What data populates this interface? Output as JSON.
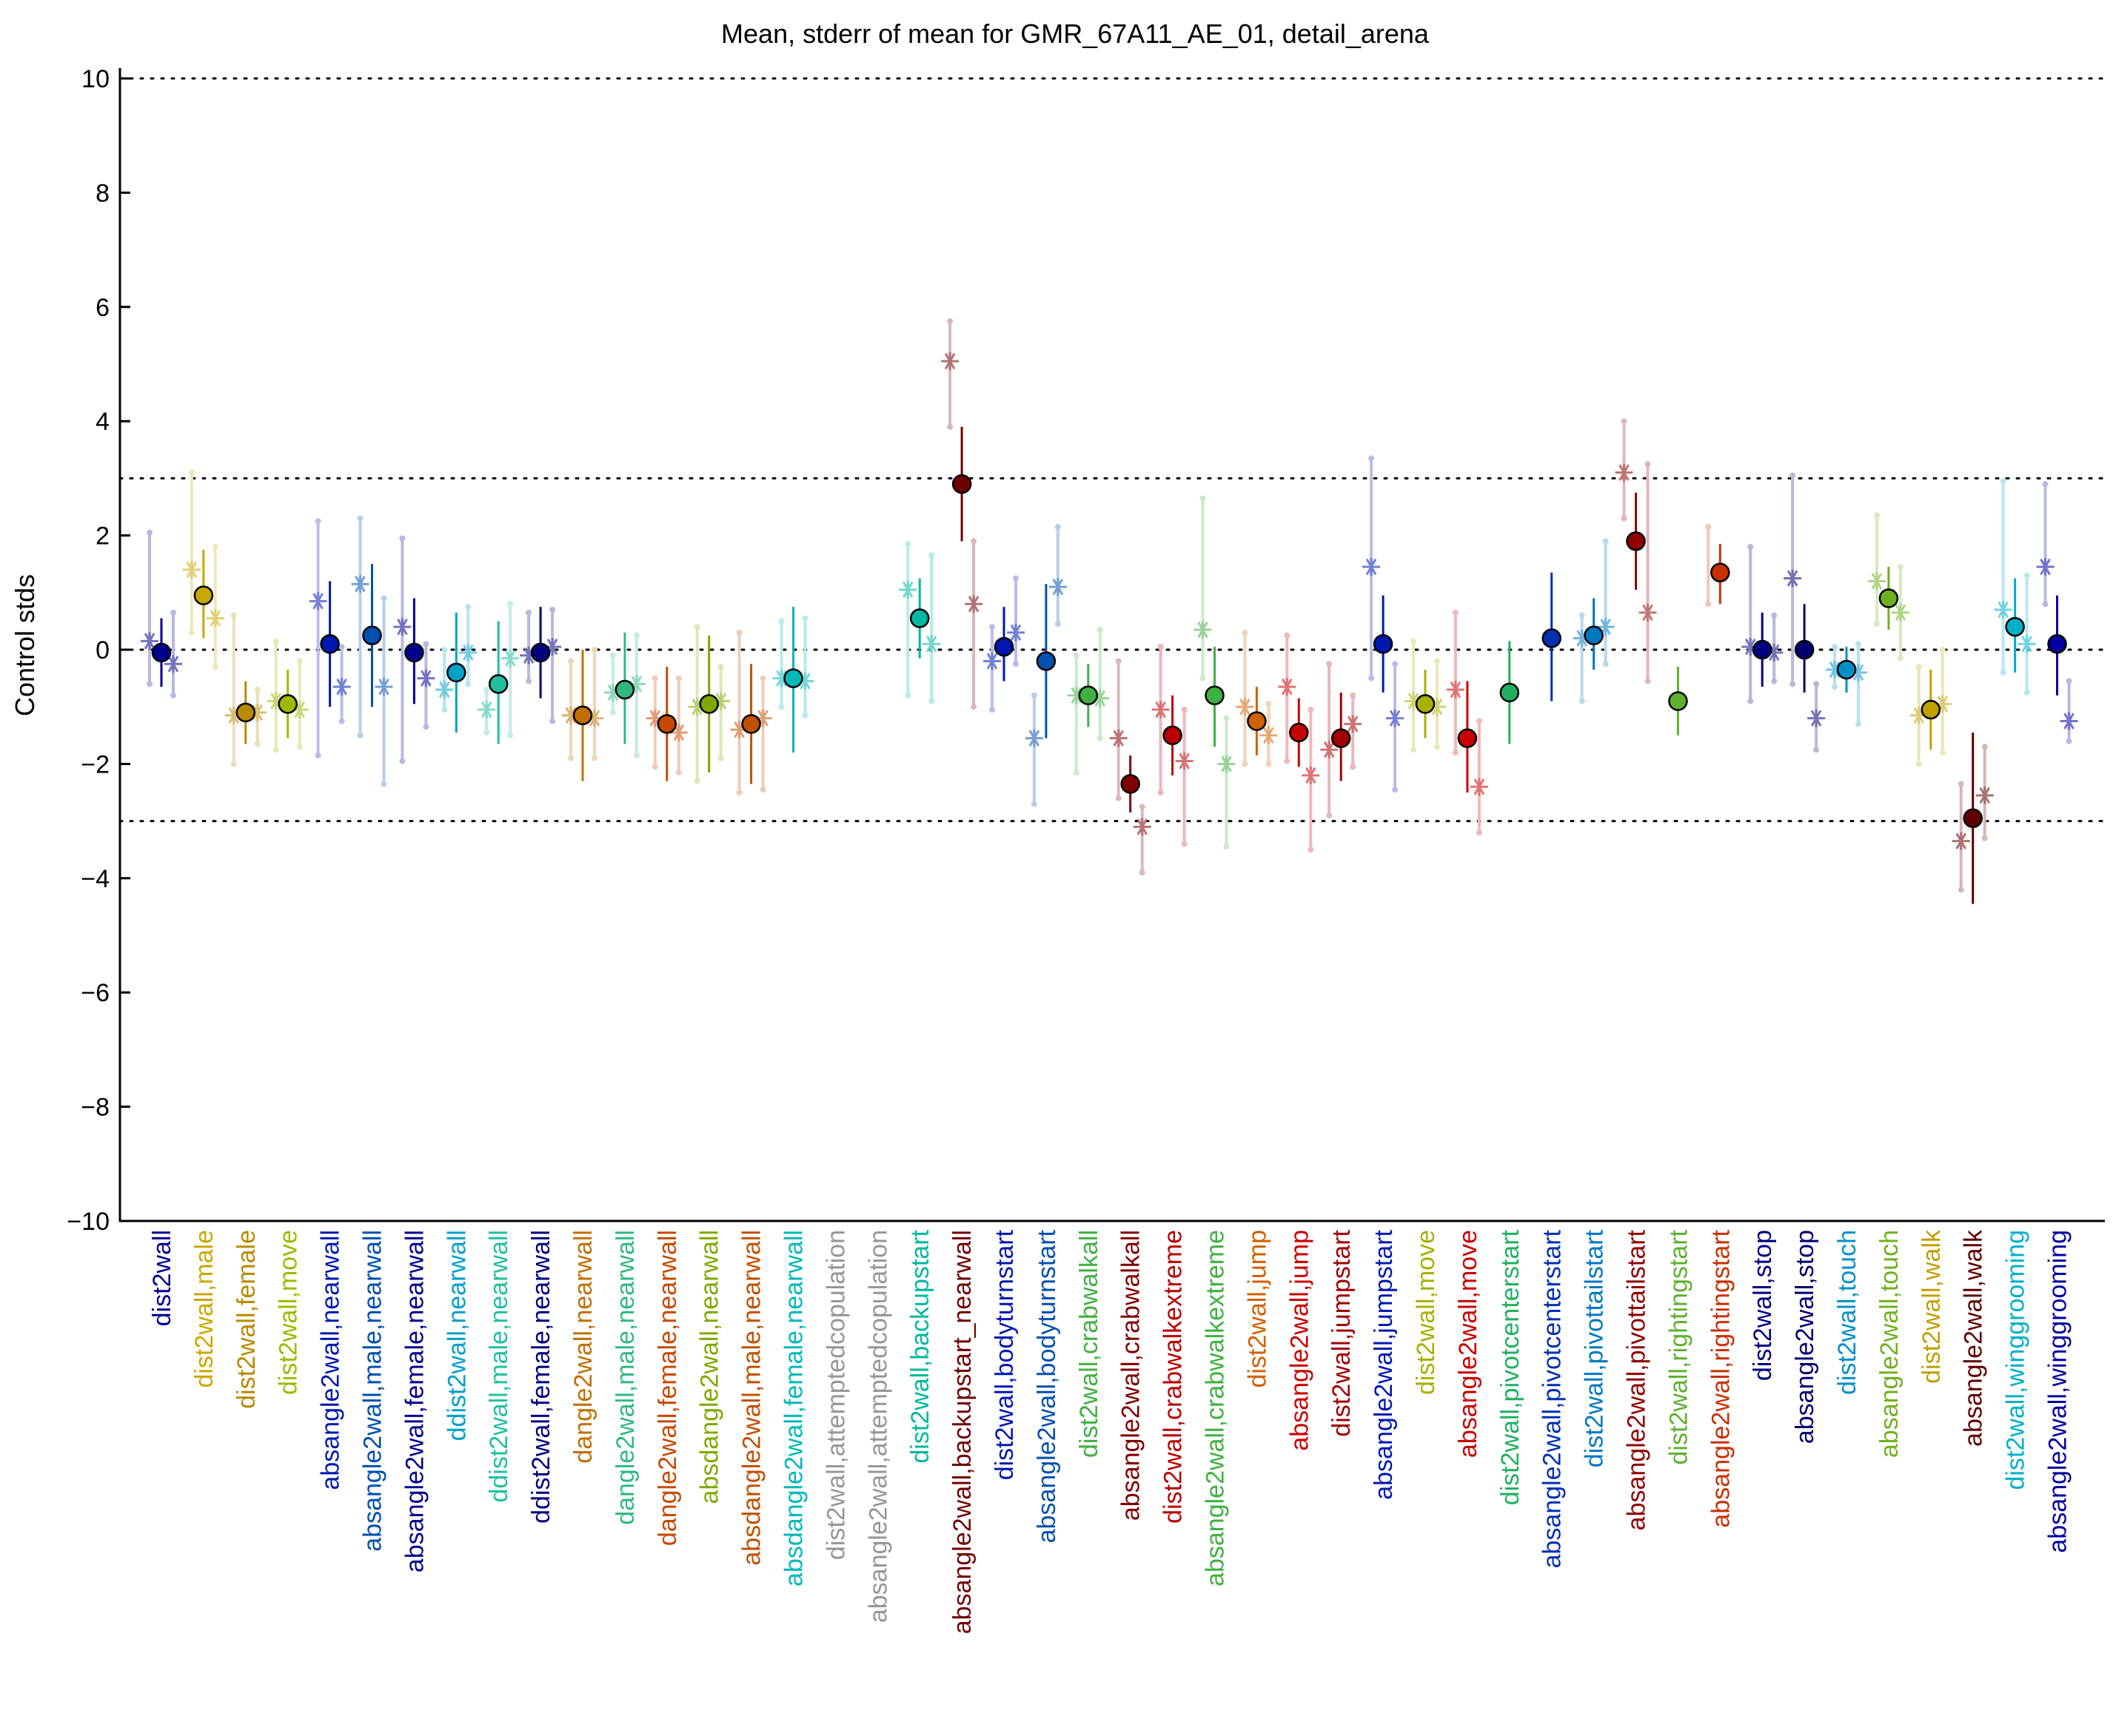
{
  "chart_data": {
    "type": "scatter",
    "title": "Mean, stderr of mean for GMR_67A11_AE_01, detail_arena",
    "xlabel": "",
    "ylabel": "Control stds",
    "ylim": [
      -10,
      10
    ],
    "yticks": [
      10,
      8,
      6,
      4,
      2,
      0,
      -2,
      -4,
      -6,
      -8,
      -10
    ],
    "ytick_labels": [
      "10",
      "8",
      "6",
      "4",
      "2",
      "0",
      "−2",
      "−4",
      "−6",
      "−8",
      "−10"
    ],
    "reference_lines": [
      10,
      3,
      0,
      -3,
      -10
    ],
    "reference_line_style": "dotted",
    "grid": false,
    "legend": "none",
    "categories": [
      {
        "label": "dist2wall",
        "color": "#00008f",
        "mean": -0.05,
        "err_lo": -0.65,
        "err_hi": 0.55,
        "left_star": 0.15,
        "left_lo": -0.6,
        "left_hi": 2.05,
        "right_star": -0.25,
        "right_lo": -0.8,
        "right_hi": 0.65
      },
      {
        "label": "dist2wall,male",
        "color": "#c8a800",
        "mean": 0.95,
        "err_lo": 0.2,
        "err_hi": 1.75,
        "left_star": 1.4,
        "left_lo": 0.3,
        "left_hi": 3.1,
        "right_star": 0.55,
        "right_lo": -0.3,
        "right_hi": 1.8
      },
      {
        "label": "dist2wall,female",
        "color": "#b88a00",
        "mean": -1.1,
        "err_lo": -1.65,
        "err_hi": -0.55,
        "left_star": -1.15,
        "left_lo": -2.0,
        "left_hi": 0.6,
        "right_star": -1.1,
        "right_lo": -1.65,
        "right_hi": -0.7
      },
      {
        "label": "dist2wall,move",
        "color": "#a0b800",
        "mean": -0.95,
        "err_lo": -1.55,
        "err_hi": -0.35,
        "left_star": -0.9,
        "left_lo": -1.75,
        "left_hi": 0.15,
        "right_star": -1.05,
        "right_lo": -1.7,
        "right_hi": -0.2
      },
      {
        "label": "absangle2wall,nearwall",
        "color": "#0018b0",
        "mean": 0.1,
        "err_lo": -1.0,
        "err_hi": 1.2,
        "left_star": 0.85,
        "left_lo": -1.85,
        "left_hi": 2.25,
        "right_star": -0.65,
        "right_lo": -1.25,
        "right_hi": 0.05
      },
      {
        "label": "absangle2wall,male,nearwall",
        "color": "#0050b0",
        "mean": 0.25,
        "err_lo": -1.0,
        "err_hi": 1.5,
        "left_star": 1.15,
        "left_lo": -1.5,
        "left_hi": 2.3,
        "right_star": -0.65,
        "right_lo": -2.35,
        "right_hi": 0.9
      },
      {
        "label": "absangle2wall,female,nearwall",
        "color": "#00008f",
        "mean": -0.05,
        "err_lo": -0.95,
        "err_hi": 0.9,
        "left_star": 0.4,
        "left_lo": -1.95,
        "left_hi": 1.95,
        "right_star": -0.5,
        "right_lo": -1.35,
        "right_hi": 0.1
      },
      {
        "label": "ddist2wall,nearwall",
        "color": "#00a0c8",
        "mean": -0.4,
        "err_lo": -1.45,
        "err_hi": 0.65,
        "left_star": -0.7,
        "left_lo": -1.05,
        "left_hi": 0.0,
        "right_star": -0.05,
        "right_lo": -0.6,
        "right_hi": 0.75
      },
      {
        "label": "ddist2wall,male,nearwall",
        "color": "#20c0a0",
        "mean": -0.6,
        "err_lo": -1.65,
        "err_hi": 0.5,
        "left_star": -1.05,
        "left_lo": -1.45,
        "left_hi": -0.7,
        "right_star": -0.15,
        "right_lo": -1.5,
        "right_hi": 0.8
      },
      {
        "label": "ddist2wall,female,nearwall",
        "color": "#000080",
        "mean": -0.05,
        "err_lo": -0.85,
        "err_hi": 0.75,
        "left_star": -0.1,
        "left_lo": -0.55,
        "left_hi": 0.65,
        "right_star": 0.05,
        "right_lo": -1.25,
        "right_hi": 0.7
      },
      {
        "label": "dangle2wall,nearwall",
        "color": "#c07000",
        "mean": -1.15,
        "err_lo": -2.3,
        "err_hi": 0.0,
        "left_star": -1.15,
        "left_lo": -1.9,
        "left_hi": -0.2,
        "right_star": -1.2,
        "right_lo": -1.9,
        "right_hi": 0.0
      },
      {
        "label": "dangle2wall,male,nearwall",
        "color": "#30b880",
        "mean": -0.7,
        "err_lo": -1.65,
        "err_hi": 0.3,
        "left_star": -0.75,
        "left_lo": -1.1,
        "left_hi": -0.1,
        "right_star": -0.6,
        "right_lo": -1.85,
        "right_hi": 0.25
      },
      {
        "label": "dangle2wall,female,nearwall",
        "color": "#c84800",
        "mean": -1.3,
        "err_lo": -2.3,
        "err_hi": -0.3,
        "left_star": -1.2,
        "left_lo": -2.05,
        "left_hi": -0.5,
        "right_star": -1.45,
        "right_lo": -2.15,
        "right_hi": -0.5
      },
      {
        "label": "absdangle2wall,nearwall",
        "color": "#80a800",
        "mean": -0.95,
        "err_lo": -2.15,
        "err_hi": 0.25,
        "left_star": -1.0,
        "left_lo": -2.3,
        "left_hi": 0.4,
        "right_star": -0.9,
        "right_lo": -1.9,
        "right_hi": -0.3
      },
      {
        "label": "absdangle2wall,male,nearwall",
        "color": "#c05000",
        "mean": -1.3,
        "err_lo": -2.35,
        "err_hi": -0.25,
        "left_star": -1.4,
        "left_lo": -2.5,
        "left_hi": 0.3,
        "right_star": -1.2,
        "right_lo": -2.45,
        "right_hi": -0.5
      },
      {
        "label": "absdangle2wall,female,nearwall",
        "color": "#00b8b8",
        "mean": -0.5,
        "err_lo": -1.8,
        "err_hi": 0.75,
        "left_star": -0.5,
        "left_lo": -1.0,
        "left_hi": 0.5,
        "right_star": -0.55,
        "right_lo": -1.15,
        "right_hi": 0.55
      },
      {
        "label": "dist2wall,attemptedcopulation",
        "color": "#969696",
        "mean": null
      },
      {
        "label": "absangle2wall,attemptedcopulation",
        "color": "#969696",
        "mean": null
      },
      {
        "label": "dist2wall,backupstart",
        "color": "#00b8a0",
        "mean": 0.55,
        "err_lo": -0.15,
        "err_hi": 1.25,
        "left_star": 1.05,
        "left_lo": -0.8,
        "left_hi": 1.85,
        "right_star": 0.1,
        "right_lo": -0.9,
        "right_hi": 1.65
      },
      {
        "label": "absangle2wall,backupstart_nearwall",
        "color": "#700000",
        "mean": 2.9,
        "err_lo": 1.9,
        "err_hi": 3.9,
        "left_star": 5.05,
        "left_lo": 3.9,
        "left_hi": 5.75,
        "right_star": 0.8,
        "right_lo": -1.0,
        "right_hi": 1.9
      },
      {
        "label": "dist2wall,bodyturnstart",
        "color": "#0018b0",
        "mean": 0.05,
        "err_lo": -0.55,
        "err_hi": 0.75,
        "left_star": -0.2,
        "left_lo": -1.05,
        "left_hi": 0.4,
        "right_star": 0.3,
        "right_lo": -0.25,
        "right_hi": 1.25
      },
      {
        "label": "absangle2wall,bodyturnstart",
        "color": "#0050b0",
        "mean": -0.2,
        "err_lo": -1.55,
        "err_hi": 1.15,
        "left_star": -1.55,
        "left_lo": -2.7,
        "left_hi": -0.8,
        "right_star": 1.1,
        "right_lo": 0.45,
        "right_hi": 2.15
      },
      {
        "label": "dist2wall,crabwalkall",
        "color": "#40b040",
        "mean": -0.8,
        "err_lo": -1.35,
        "err_hi": -0.25,
        "left_star": -0.8,
        "left_lo": -2.15,
        "left_hi": -0.1,
        "right_star": -0.85,
        "right_lo": -1.55,
        "right_hi": 0.35
      },
      {
        "label": "absangle2wall,crabwalkall",
        "color": "#800000",
        "mean": -2.35,
        "err_lo": -2.85,
        "err_hi": -1.85,
        "left_star": -1.55,
        "left_lo": -2.6,
        "left_hi": -0.2,
        "right_star": -3.1,
        "right_lo": -3.9,
        "right_hi": -2.75
      },
      {
        "label": "dist2wall,crabwalkextreme",
        "color": "#b80000",
        "mean": -1.5,
        "err_lo": -2.2,
        "err_hi": -0.8,
        "left_star": -1.05,
        "left_lo": -2.5,
        "left_hi": 0.05,
        "right_star": -1.95,
        "right_lo": -3.4,
        "right_hi": -1.05
      },
      {
        "label": "absangle2wall,crabwalkextreme",
        "color": "#40b040",
        "mean": -0.8,
        "err_lo": -1.7,
        "err_hi": 0.05,
        "left_star": 0.35,
        "left_lo": -0.5,
        "left_hi": 2.65,
        "right_star": -2.0,
        "right_lo": -3.45,
        "right_hi": -1.2
      },
      {
        "label": "dist2wall,jump",
        "color": "#d06000",
        "mean": -1.25,
        "err_lo": -1.85,
        "err_hi": -0.65,
        "left_star": -1.0,
        "left_lo": -2.0,
        "left_hi": 0.3,
        "right_star": -1.5,
        "right_lo": -2.0,
        "right_hi": -0.95
      },
      {
        "label": "absangle2wall,jump",
        "color": "#c80000",
        "mean": -1.45,
        "err_lo": -2.05,
        "err_hi": -0.85,
        "left_star": -0.65,
        "left_lo": -1.95,
        "left_hi": 0.25,
        "right_star": -2.2,
        "right_lo": -3.5,
        "right_hi": -1.05
      },
      {
        "label": "dist2wall,jumpstart",
        "color": "#a00000",
        "mean": -1.55,
        "err_lo": -2.3,
        "err_hi": -0.75,
        "left_star": -1.75,
        "left_lo": -2.9,
        "left_hi": -0.25,
        "right_star": -1.3,
        "right_lo": -2.05,
        "right_hi": -0.8
      },
      {
        "label": "absangle2wall,jumpstart",
        "color": "#0018b0",
        "mean": 0.1,
        "err_lo": -0.75,
        "err_hi": 0.95,
        "left_star": 1.45,
        "left_lo": -0.5,
        "left_hi": 3.35,
        "right_star": -1.2,
        "right_lo": -2.45,
        "right_hi": -0.25
      },
      {
        "label": "dist2wall,move",
        "color": "#a8b000",
        "mean": -0.95,
        "err_lo": -1.55,
        "err_hi": -0.35,
        "left_star": -0.9,
        "left_lo": -1.75,
        "left_hi": 0.15,
        "right_star": -1.0,
        "right_lo": -1.7,
        "right_hi": -0.2
      },
      {
        "label": "absangle2wall,move",
        "color": "#c80000",
        "mean": -1.55,
        "err_lo": -2.5,
        "err_hi": -0.55,
        "left_star": -0.7,
        "left_lo": -1.8,
        "left_hi": 0.65,
        "right_star": -2.4,
        "right_lo": -3.2,
        "right_hi": -1.25
      },
      {
        "label": "dist2wall,pivotcenterstart",
        "color": "#20b060",
        "mean": -0.75,
        "err_lo": -1.65,
        "err_hi": 0.15,
        "no_stars": true
      },
      {
        "label": "absangle2wall,pivotcenterstart",
        "color": "#0030b0",
        "mean": 0.2,
        "err_lo": -0.9,
        "err_hi": 1.35,
        "no_stars": true
      },
      {
        "label": "dist2wall,pivottailstart",
        "color": "#0078c0",
        "mean": 0.25,
        "err_lo": -0.35,
        "err_hi": 0.9,
        "left_star": 0.2,
        "left_lo": -0.9,
        "left_hi": 0.6,
        "right_star": 0.4,
        "right_lo": -0.25,
        "right_hi": 1.9
      },
      {
        "label": "absangle2wall,pivottailstart",
        "color": "#900000",
        "mean": 1.9,
        "err_lo": 1.05,
        "err_hi": 2.75,
        "left_star": 3.1,
        "left_lo": 2.3,
        "left_hi": 4.0,
        "right_star": 0.65,
        "right_lo": -0.55,
        "right_hi": 3.25
      },
      {
        "label": "dist2wall,rightingstart",
        "color": "#60b030",
        "mean": -0.9,
        "err_lo": -1.5,
        "err_hi": -0.3,
        "no_stars": true
      },
      {
        "label": "absangle2wall,rightingstart",
        "color": "#c83000",
        "mean": 1.35,
        "err_lo": 0.8,
        "err_hi": 1.85,
        "left_star": null,
        "left_lo": 0.8,
        "left_hi": 2.15,
        "right_star": null
      },
      {
        "label": "dist2wall,stop",
        "color": "#000080",
        "mean": 0.0,
        "err_lo": -0.65,
        "err_hi": 0.65,
        "left_star": 0.05,
        "left_lo": -0.9,
        "left_hi": 1.8,
        "right_star": -0.05,
        "right_lo": -0.55,
        "right_hi": 0.6
      },
      {
        "label": "absangle2wall,stop",
        "color": "#000070",
        "mean": 0.0,
        "err_lo": -0.75,
        "err_hi": 0.8,
        "left_star": 1.25,
        "left_lo": -0.6,
        "left_hi": 3.05,
        "right_star": -1.2,
        "right_lo": -1.75,
        "right_hi": -0.6
      },
      {
        "label": "dist2wall,touch",
        "color": "#0090c8",
        "mean": -0.35,
        "err_lo": -0.75,
        "err_hi": 0.05,
        "left_star": -0.35,
        "left_lo": -0.65,
        "left_hi": 0.05,
        "right_star": -0.4,
        "right_lo": -1.3,
        "right_hi": 0.1
      },
      {
        "label": "absangle2wall,touch",
        "color": "#70b020",
        "mean": 0.9,
        "err_lo": 0.35,
        "err_hi": 1.45,
        "left_star": 1.2,
        "left_lo": 0.45,
        "left_hi": 2.35,
        "right_star": 0.65,
        "right_lo": -0.15,
        "right_hi": 1.45
      },
      {
        "label": "dist2wall,walk",
        "color": "#c0a000",
        "mean": -1.05,
        "err_lo": -1.75,
        "err_hi": -0.35,
        "left_star": -1.15,
        "left_lo": -2.0,
        "left_hi": -0.3,
        "right_star": -0.95,
        "right_lo": -1.8,
        "right_hi": 0.0
      },
      {
        "label": "absangle2wall,walk",
        "color": "#600000",
        "mean": -2.95,
        "err_lo": -4.45,
        "err_hi": -1.45,
        "left_star": -3.35,
        "left_lo": -4.2,
        "left_hi": -2.35,
        "right_star": -2.55,
        "right_lo": -3.3,
        "right_hi": -1.7
      },
      {
        "label": "dist2wall,winggrooming",
        "color": "#00b0c8",
        "mean": 0.4,
        "err_lo": -0.4,
        "err_hi": 1.25,
        "left_star": 0.7,
        "left_lo": -0.4,
        "left_hi": 2.95,
        "right_star": 0.1,
        "right_lo": -0.75,
        "right_hi": 1.3
      },
      {
        "label": "absangle2wall,winggrooming",
        "color": "#0000a0",
        "mean": 0.1,
        "err_lo": -0.8,
        "err_hi": 0.95,
        "left_star": 1.45,
        "left_lo": 0.8,
        "left_hi": 2.9,
        "right_star": -1.25,
        "right_lo": -1.6,
        "right_hi": -0.55
      }
    ]
  }
}
